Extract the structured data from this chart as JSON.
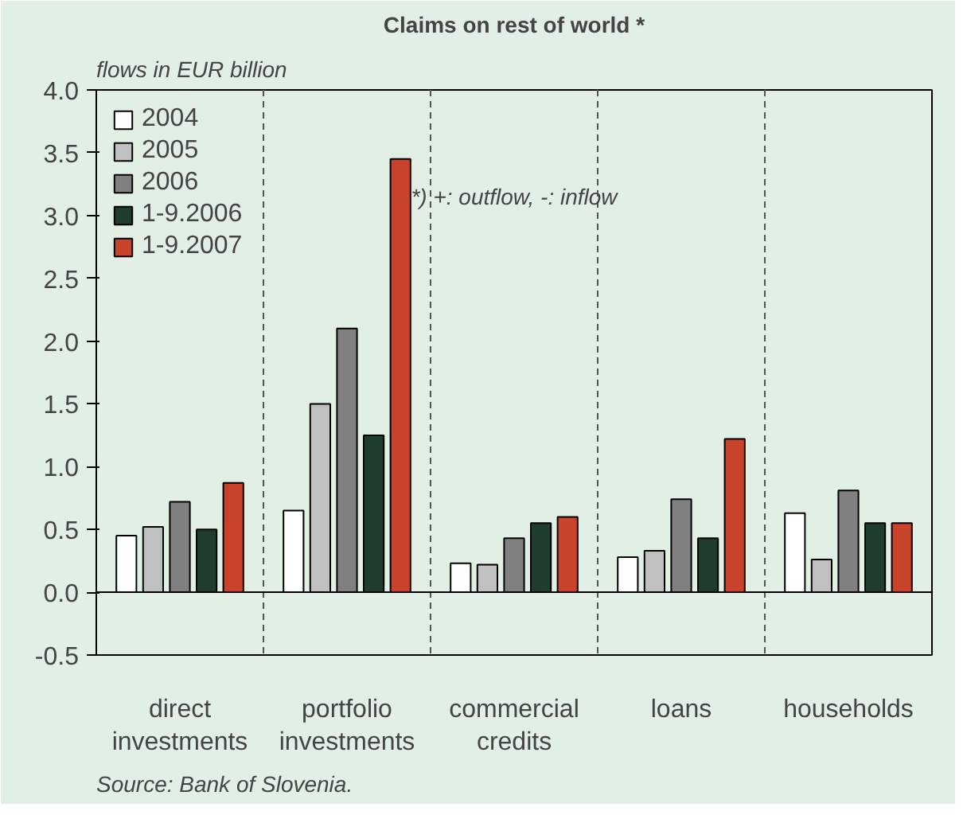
{
  "chart_data": {
    "type": "bar",
    "title": "Claims on rest of world *",
    "ylabel": "flows in EUR billion",
    "categories": [
      "direct\ninvestments",
      "portfolio\ninvestments",
      "commercial\ncredits",
      "loans",
      "households"
    ],
    "series": [
      {
        "name": "2004",
        "color": "#ffffff",
        "values": [
          0.45,
          0.65,
          0.23,
          0.28,
          0.63
        ]
      },
      {
        "name": "2005",
        "color": "#c0c0c0",
        "values": [
          0.52,
          1.5,
          0.22,
          0.33,
          0.26
        ]
      },
      {
        "name": "2006",
        "color": "#808080",
        "values": [
          0.72,
          2.1,
          0.43,
          0.74,
          0.81
        ]
      },
      {
        "name": "1-9.2006",
        "color": "#1e3d2c",
        "values": [
          0.5,
          1.25,
          0.55,
          0.43,
          0.55
        ]
      },
      {
        "name": "1-9.2007",
        "color": "#c8432a",
        "values": [
          0.87,
          3.45,
          0.6,
          1.22,
          0.55
        ]
      }
    ],
    "ylim": [
      -0.5,
      4.0
    ],
    "yticks": [
      {
        "value": -0.5,
        "label": "-0.5"
      },
      {
        "value": 0,
        "label": "0.0"
      },
      {
        "value": 0.5,
        "label": "0.5"
      },
      {
        "value": 1,
        "label": "1.0"
      },
      {
        "value": 1.5,
        "label": "1.5"
      },
      {
        "value": 2,
        "label": "2.0"
      },
      {
        "value": 2.5,
        "label": "2.5"
      },
      {
        "value": 3,
        "label": "3.0"
      },
      {
        "value": 3.5,
        "label": "3.5"
      },
      {
        "value": 4,
        "label": "4.0"
      }
    ],
    "grid": "x",
    "legend": "top left",
    "annotations": [
      "*) +: outflow, -: inflow",
      "Source: Bank of Slovenia."
    ]
  }
}
